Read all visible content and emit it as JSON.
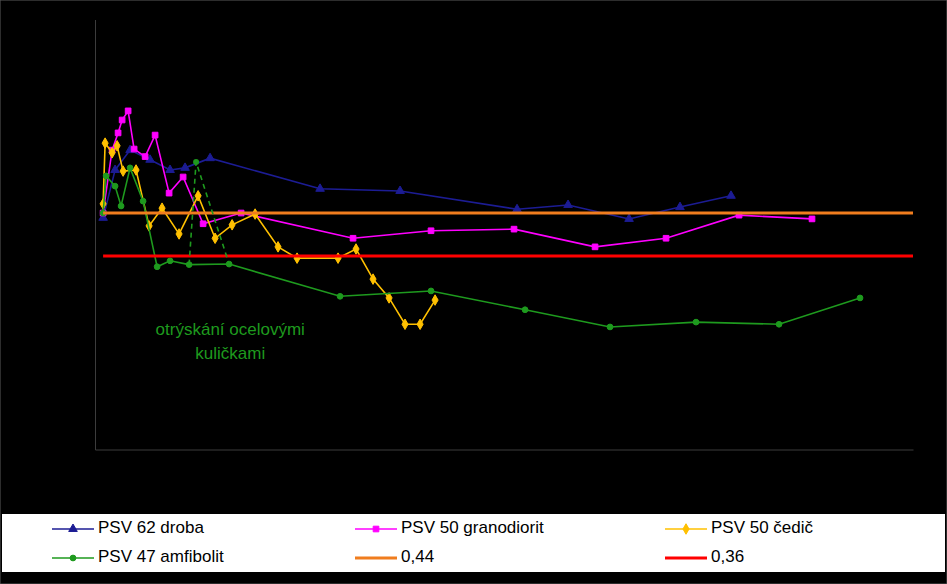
{
  "chart_data": {
    "type": "line",
    "xlim": [
      -1,
      100
    ],
    "ylim": [
      0,
      0.8
    ],
    "tick_labels": false,
    "grid": false,
    "legend": "bottom",
    "series": [
      {
        "name": "PSV 62 droba",
        "color": "#1c1c94",
        "marker": "triangle",
        "line_style": "solid",
        "x": [
          0,
          1.48,
          3.33,
          5.8,
          8.27,
          10.12,
          13.21,
          26.79,
          36.67,
          51.11,
          57.41,
          64.94,
          71.23,
          77.53
        ],
        "values": [
          0.431,
          0.52,
          0.557,
          0.539,
          0.52,
          0.524,
          0.542,
          0.485,
          0.481,
          0.447,
          0.455,
          0.429,
          0.451,
          0.472
        ]
      },
      {
        "name": "PSV 50 granodiorit",
        "color": "#ff00ff",
        "marker": "square",
        "line_style": "solid",
        "x": [
          0,
          1.11,
          1.85,
          2.35,
          3.09,
          3.83,
          5.19,
          6.42,
          8.15,
          9.88,
          12.35,
          17.04,
          30.86,
          40.49,
          50.74,
          60.74,
          69.51,
          78.52,
          87.53
        ],
        "values": [
          0.44,
          0.557,
          0.589,
          0.613,
          0.63,
          0.559,
          0.545,
          0.585,
          0.477,
          0.507,
          0.42,
          0.44,
          0.393,
          0.407,
          0.41,
          0.377,
          0.393,
          0.436,
          0.429
        ]
      },
      {
        "name": "PSV 50 čedič",
        "color": "#ffc000",
        "marker": "diamond",
        "line_style": "solid",
        "x": [
          0,
          0.25,
          1.11,
          1.73,
          2.47,
          4.07,
          5.68,
          7.28,
          9.38,
          11.73,
          13.83,
          15.93,
          18.77,
          21.6,
          23.95,
          29.01,
          31.23,
          33.33,
          35.31,
          37.28,
          39.14,
          40.99
        ],
        "values": [
          0.457,
          0.57,
          0.552,
          0.565,
          0.518,
          0.52,
          0.416,
          0.449,
          0.401,
          0.472,
          0.393,
          0.418,
          0.438,
          0.377,
          0.356,
          0.356,
          0.373,
          0.317,
          0.282,
          0.233,
          0.233,
          0.278
        ]
      },
      {
        "name": "PSV 47 amfibolit",
        "color": "#1e9a1e",
        "marker": "circle",
        "line_style": "solid",
        "x": [
          0,
          0.37,
          1.48,
          2.22,
          3.33,
          4.94,
          6.67,
          8.27,
          10.62,
          15.56,
          29.26,
          40.49,
          52.1,
          62.59,
          73.21,
          83.46,
          93.46
        ],
        "values": [
          0.44,
          0.509,
          0.49,
          0.453,
          0.524,
          0.462,
          0.34,
          0.351,
          0.344,
          0.345,
          0.285,
          0.295,
          0.26,
          0.228,
          0.237,
          0.233,
          0.282
        ]
      },
      {
        "name": "0,44",
        "color": "#f07d1e",
        "marker": "none",
        "line_style": "solid",
        "x": [
          0,
          100
        ],
        "values": [
          0.44,
          0.44
        ]
      },
      {
        "name": "0,36",
        "color": "#ff0000",
        "marker": "none",
        "line_style": "solid",
        "x": [
          0,
          100
        ],
        "values": [
          0.36,
          0.36
        ]
      }
    ],
    "annotations": [
      {
        "text": [
          "otrýskání ocelovými",
          "kuličkami"
        ],
        "color": "#1e9a1e",
        "x": 15.7,
        "y": [
          0.222,
          0.176
        ],
        "line_x": [
          10.62,
          11.48,
          15.56
        ],
        "line_y": [
          0.344,
          0.535,
          0.345
        ],
        "line_style": "dashed"
      }
    ]
  }
}
